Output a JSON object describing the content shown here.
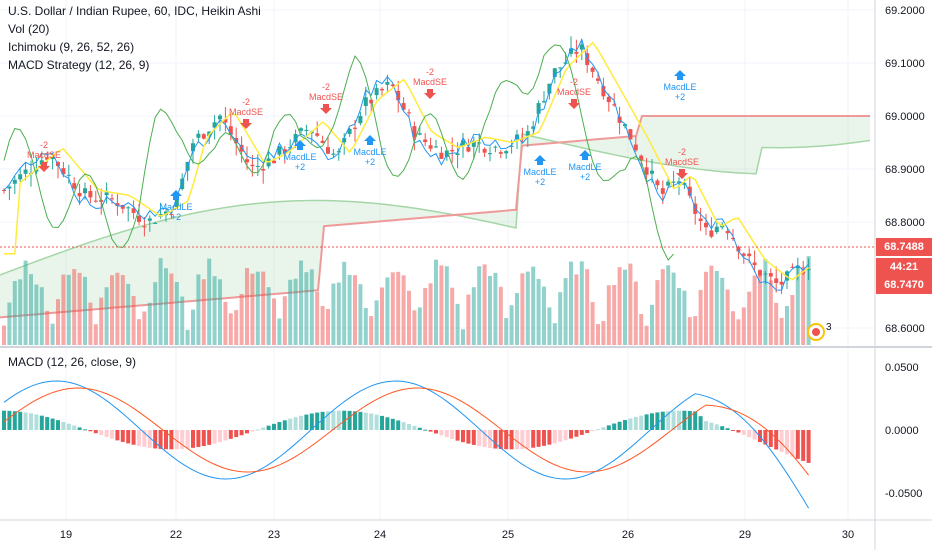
{
  "legend": {
    "symbol": "U.S. Dollar / Indian Rupee, 60, IDC, Heikin Ashi",
    "vol": "Vol (20)",
    "ichimoku": "Ichimoku (9, 26, 52, 26)",
    "macd_strategy": "MACD Strategy (12, 26, 9)",
    "macd_pane": "MACD (12, 26, close, 9)"
  },
  "price_axis": {
    "ticks": [
      "69.2000",
      "69.1000",
      "69.0000",
      "68.9000",
      "68.8000",
      "68.6000"
    ],
    "current_price": "68.7488",
    "countdown": "44:21",
    "low_tag": "68.7470",
    "current_color": "#ef5350",
    "countdown_color": "#ef5350"
  },
  "macd_axis": {
    "ticks": [
      "0.0500",
      "0.0000",
      "-0.0500"
    ]
  },
  "time_axis": {
    "ticks": [
      "19",
      "22",
      "23",
      "24",
      "25",
      "26",
      "29",
      "30"
    ]
  },
  "signals": [
    {
      "type": "short",
      "label": "MacdSE",
      "qty": "-2"
    },
    {
      "type": "long",
      "label": "MacdLE",
      "qty": "+2"
    },
    {
      "type": "short",
      "label": "MacdSE",
      "qty": "-2"
    },
    {
      "type": "long",
      "label": "MacdLE",
      "qty": "+2"
    },
    {
      "type": "short",
      "label": "MacdSE",
      "qty": "-2"
    },
    {
      "type": "long",
      "label": "MacdLE",
      "qty": "+2"
    },
    {
      "type": "long",
      "label": "MacdLE",
      "qty": "+2"
    },
    {
      "type": "short",
      "label": "MacdSE",
      "qty": "-2"
    },
    {
      "type": "long",
      "label": "MacdLE",
      "qty": "+2"
    },
    {
      "type": "short",
      "label": "MacdSE",
      "qty": "-2"
    },
    {
      "type": "long",
      "label": "MacdLE",
      "qty": "+2"
    },
    {
      "type": "short",
      "label": "MacdSE",
      "qty": "-2"
    }
  ],
  "badge": {
    "count": "3"
  },
  "colors": {
    "up": "#26a69a",
    "down": "#ef5350",
    "macd_line": "#2196f3",
    "signal_line": "#ff5722",
    "conversion": "#2196f3",
    "base": "#f44336",
    "lagging": "#4caf50",
    "span_a": "#a5d6a7",
    "span_b": "#ef9a9a"
  }
}
